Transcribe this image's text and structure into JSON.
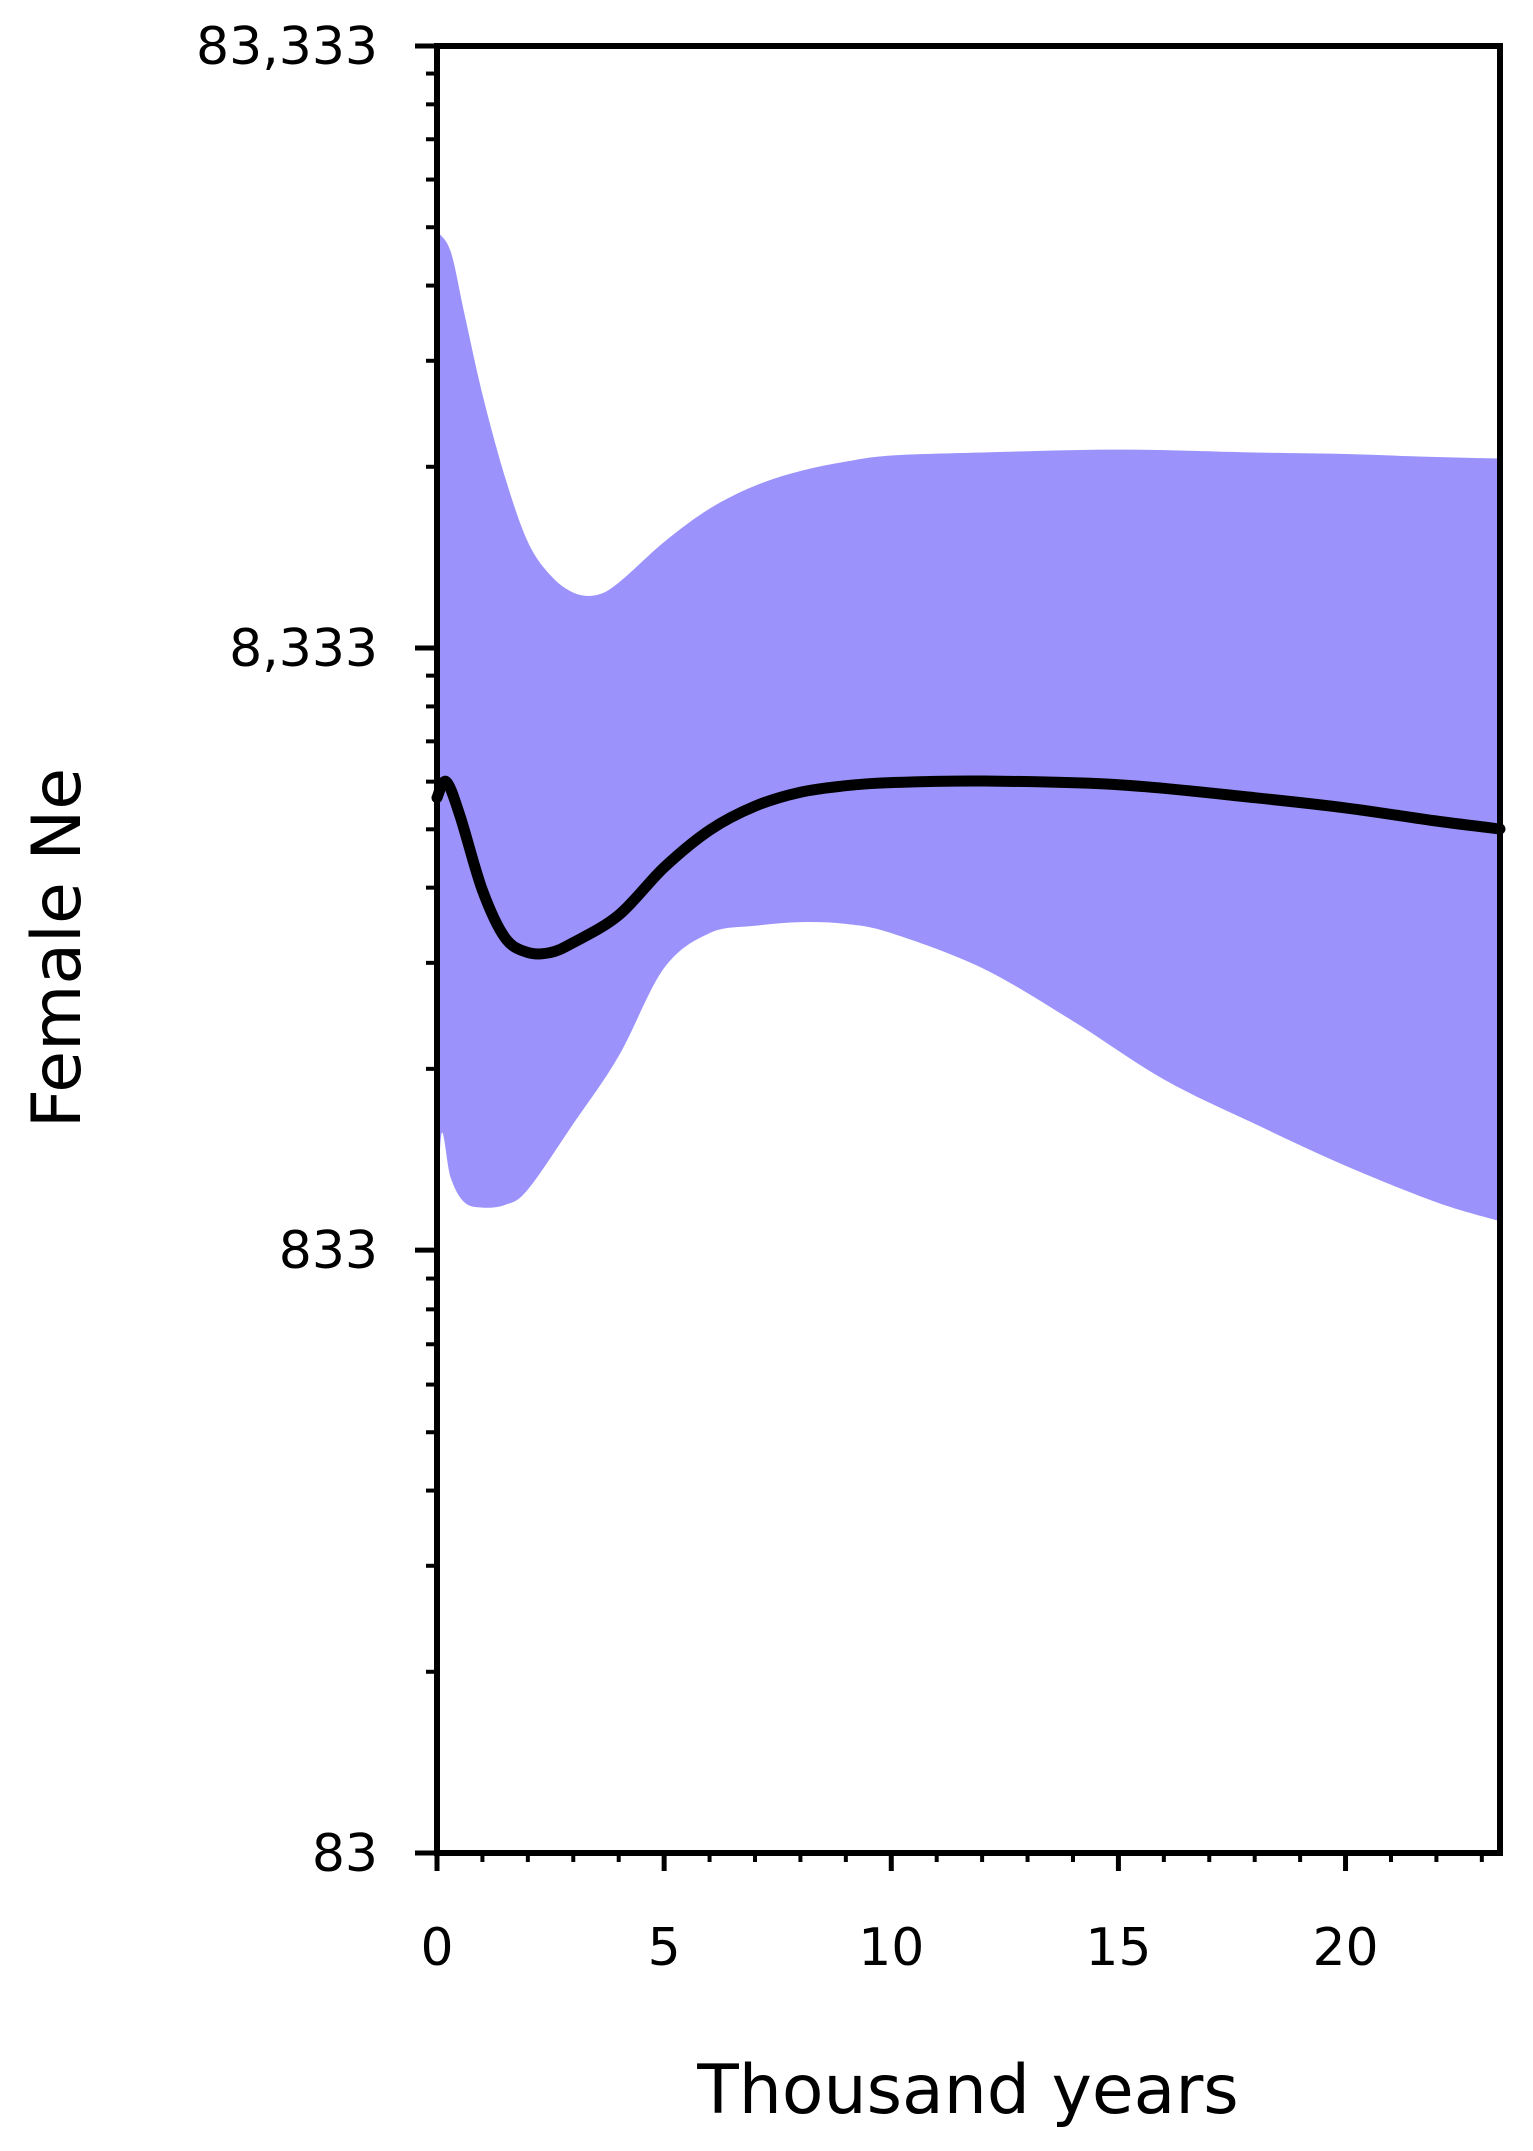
{
  "chart_data": {
    "type": "area",
    "title": "",
    "xlabel": "Thousand years",
    "ylabel": "Female Ne",
    "y_scale": "log",
    "xlim": [
      0,
      23.4
    ],
    "ylim": [
      83,
      83333
    ],
    "x_ticks": [
      0,
      5,
      10,
      15,
      20
    ],
    "x_tick_labels": [
      "0",
      "5",
      "10",
      "15",
      "20"
    ],
    "y_ticks": [
      83,
      833,
      8333,
      83333
    ],
    "y_tick_labels": [
      "83",
      "833",
      "8,333",
      "83,333"
    ],
    "grid": false,
    "legend": "none",
    "colors": {
      "band": "#9b93fb",
      "median": "#000000",
      "axes": "#000000"
    },
    "series": [
      {
        "role": "median",
        "x": [
          0.0,
          0.2,
          0.5,
          1.0,
          1.5,
          2.0,
          2.5,
          3.0,
          4.0,
          5.0,
          6.0,
          7.0,
          8.0,
          9.0,
          10.0,
          12.0,
          15.0,
          18.0,
          20.0,
          22.0,
          23.4
        ],
        "y": [
          4700,
          5000,
          4400,
          3300,
          2750,
          2600,
          2600,
          2700,
          3000,
          3600,
          4150,
          4550,
          4800,
          4920,
          4980,
          5010,
          4940,
          4700,
          4520,
          4300,
          4170
        ]
      },
      {
        "role": "upper_95",
        "x": [
          0.0,
          0.3,
          0.6,
          1.0,
          1.5,
          2.0,
          2.5,
          3.0,
          3.5,
          4.0,
          5.0,
          6.0,
          7.0,
          8.0,
          9.0,
          10.0,
          12.0,
          15.0,
          18.0,
          20.0,
          22.0,
          23.4
        ],
        "y": [
          41000,
          38000,
          30000,
          22000,
          16000,
          12500,
          11000,
          10300,
          10200,
          10700,
          12500,
          14200,
          15500,
          16400,
          17000,
          17400,
          17600,
          17800,
          17600,
          17500,
          17300,
          17200
        ]
      },
      {
        "role": "lower_95",
        "x": [
          0.0,
          0.1,
          0.3,
          0.6,
          1.0,
          1.5,
          2.0,
          3.0,
          4.0,
          5.0,
          6.0,
          7.0,
          8.0,
          9.0,
          10.0,
          12.0,
          14.0,
          16.0,
          18.0,
          20.0,
          22.0,
          23.4
        ],
        "y": [
          900,
          1300,
          1100,
          1000,
          980,
          990,
          1050,
          1350,
          1750,
          2450,
          2800,
          2880,
          2920,
          2900,
          2800,
          2450,
          2000,
          1600,
          1350,
          1150,
          1000,
          930
        ]
      }
    ]
  }
}
